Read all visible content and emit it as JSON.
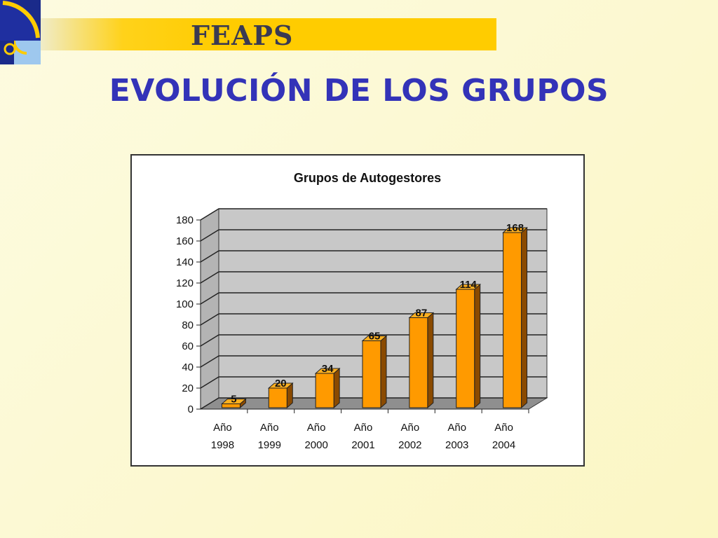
{
  "header": {
    "brand": "FEAPS",
    "title": "EVOLUCIÓN DE LOS GRUPOS"
  },
  "colors": {
    "bar_front": "#ff9a00",
    "bar_side": "#8a4a00",
    "bar_top": "#ffb020",
    "wall": "#c8c8c8",
    "floor": "#8f8f8f",
    "title_blue": "#3333b8",
    "banner_yellow": "#ffcc00"
  },
  "chart_data": {
    "type": "bar",
    "title": "Grupos de Autogestores",
    "categories": [
      [
        "Año",
        "1998"
      ],
      [
        "Año",
        "1999"
      ],
      [
        "Año",
        "2000"
      ],
      [
        "Año",
        "2001"
      ],
      [
        "Año",
        "2002"
      ],
      [
        "Año",
        "2003"
      ],
      [
        "Año",
        "2004"
      ]
    ],
    "values": [
      5,
      20,
      34,
      65,
      87,
      114,
      168
    ],
    "ylim": [
      0,
      180
    ],
    "yticks": [
      0,
      20,
      40,
      60,
      80,
      100,
      120,
      140,
      160,
      180
    ],
    "grid": true,
    "style": "3d-column",
    "legend": "none"
  }
}
